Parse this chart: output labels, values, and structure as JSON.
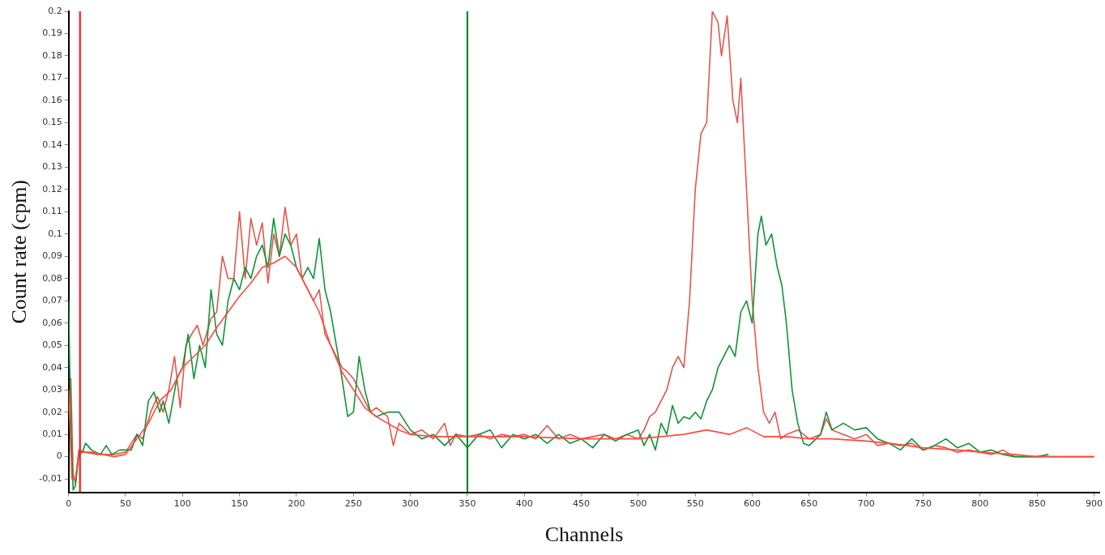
{
  "chart_data": {
    "type": "line",
    "xlabel": "Channels",
    "ylabel": "Count rate (cpm)",
    "marker": "none",
    "line_style": "solid",
    "grid": false,
    "legend": false,
    "xlim": [
      0,
      905
    ],
    "xticks": [
      0,
      50,
      100,
      150,
      200,
      250,
      300,
      350,
      400,
      450,
      500,
      550,
      600,
      650,
      700,
      750,
      800,
      850,
      900
    ],
    "ylim": [
      -0.016,
      0.2
    ],
    "yticks": [
      {
        "value": -0.01,
        "label": "-0,01"
      },
      {
        "value": 0,
        "label": "0"
      },
      {
        "value": 0.01,
        "label": "0,01"
      },
      {
        "value": 0.02,
        "label": "0,02"
      },
      {
        "value": 0.03,
        "label": "0,03"
      },
      {
        "value": 0.04,
        "label": "0,04"
      },
      {
        "value": 0.05,
        "label": "0,05"
      },
      {
        "value": 0.06,
        "label": "0,06"
      },
      {
        "value": 0.07,
        "label": "0,07"
      },
      {
        "value": 0.08,
        "label": "0,08"
      },
      {
        "value": 0.09,
        "label": "0,09"
      },
      {
        "value": 0.1,
        "label": "0,1"
      },
      {
        "value": 0.11,
        "label": "0.11"
      },
      {
        "value": 0.12,
        "label": "0.12"
      },
      {
        "value": 0.13,
        "label": "0.13"
      },
      {
        "value": 0.14,
        "label": "0.14"
      },
      {
        "value": 0.15,
        "label": "0.15"
      },
      {
        "value": 0.16,
        "label": "0.16"
      },
      {
        "value": 0.17,
        "label": "0.17"
      },
      {
        "value": 0.18,
        "label": "0.18"
      },
      {
        "value": 0.19,
        "label": "0.19"
      },
      {
        "value": 0.2,
        "label": "0.2"
      }
    ],
    "ref_lines": [
      {
        "axis": "x",
        "value": 10,
        "color": "#ff1a1a"
      },
      {
        "axis": "x",
        "value": 350,
        "color": "#0a8a2a"
      }
    ],
    "series": [
      {
        "color": "#ff4a3d",
        "x": [
          0,
          3,
          6,
          9,
          20,
          40,
          50,
          60,
          70,
          80,
          90,
          100,
          110,
          120,
          130,
          140,
          150,
          160,
          170,
          180,
          190,
          200,
          210,
          220,
          230,
          240,
          250,
          260,
          270,
          280,
          290,
          300,
          320,
          350,
          400,
          450,
          500,
          520,
          540,
          560,
          580,
          595,
          610,
          630,
          650,
          670,
          700,
          720,
          750,
          780,
          800,
          830,
          850,
          900
        ],
        "values": [
          0.03,
          -0.01,
          -0.01,
          0.002,
          0.002,
          0,
          0.001,
          0.008,
          0.015,
          0.025,
          0.03,
          0.04,
          0.045,
          0.05,
          0.058,
          0.065,
          0.072,
          0.078,
          0.085,
          0.087,
          0.09,
          0.085,
          0.075,
          0.065,
          0.05,
          0.038,
          0.03,
          0.022,
          0.018,
          0.015,
          0.012,
          0.01,
          0.009,
          0.009,
          0.009,
          0.008,
          0.008,
          0.009,
          0.01,
          0.012,
          0.01,
          0.013,
          0.009,
          0.009,
          0.008,
          0.008,
          0.007,
          0.006,
          0.004,
          0.003,
          0.002,
          0.001,
          0,
          0
        ]
      },
      {
        "color": "#0f9438",
        "x": [
          0,
          1,
          2,
          4,
          6,
          9,
          12,
          15,
          20,
          28,
          33,
          38,
          45,
          55,
          60,
          65,
          70,
          75,
          80,
          83,
          88,
          95,
          100,
          105,
          110,
          115,
          120,
          125,
          130,
          135,
          140,
          145,
          150,
          155,
          160,
          165,
          170,
          175,
          180,
          185,
          190,
          195,
          200,
          205,
          210,
          215,
          220,
          225,
          230,
          235,
          240,
          245,
          250,
          255,
          260,
          265,
          270,
          280,
          290,
          300,
          310,
          320,
          330,
          340,
          350,
          360,
          370,
          380,
          390,
          400,
          410,
          420,
          430,
          440,
          450,
          460,
          470,
          480,
          490,
          500,
          505,
          510,
          515,
          520,
          525,
          530,
          535,
          540,
          545,
          550,
          555,
          560,
          565,
          570,
          575,
          580,
          585,
          590,
          595,
          600,
          605,
          608,
          612,
          617,
          622,
          626,
          630,
          635,
          640,
          645,
          650,
          660,
          665,
          670,
          680,
          690,
          700,
          710,
          720,
          730,
          740,
          750,
          760,
          770,
          780,
          790,
          800,
          810,
          820,
          830,
          850,
          860
        ],
        "values": [
          0.07,
          0.04,
          0.015,
          -0.015,
          -0.013,
          0.001,
          0.002,
          0.006,
          0.003,
          0.001,
          0.005,
          0.001,
          0.003,
          0.003,
          0.01,
          0.005,
          0.025,
          0.029,
          0.02,
          0.025,
          0.015,
          0.035,
          0.04,
          0.055,
          0.035,
          0.05,
          0.04,
          0.075,
          0.055,
          0.05,
          0.07,
          0.08,
          0.075,
          0.085,
          0.08,
          0.09,
          0.095,
          0.085,
          0.107,
          0.09,
          0.1,
          0.095,
          0.085,
          0.08,
          0.085,
          0.08,
          0.098,
          0.075,
          0.065,
          0.05,
          0.035,
          0.018,
          0.02,
          0.045,
          0.03,
          0.02,
          0.018,
          0.02,
          0.02,
          0.012,
          0.008,
          0.01,
          0.005,
          0.01,
          0.004,
          0.01,
          0.012,
          0.004,
          0.01,
          0.008,
          0.01,
          0.006,
          0.01,
          0.006,
          0.008,
          0.004,
          0.01,
          0.007,
          0.01,
          0.012,
          0.005,
          0.01,
          0.003,
          0.015,
          0.01,
          0.023,
          0.015,
          0.018,
          0.017,
          0.02,
          0.017,
          0.025,
          0.03,
          0.04,
          0.045,
          0.05,
          0.045,
          0.065,
          0.07,
          0.06,
          0.1,
          0.108,
          0.095,
          0.1,
          0.085,
          0.077,
          0.06,
          0.03,
          0.015,
          0.006,
          0.005,
          0.01,
          0.02,
          0.012,
          0.015,
          0.012,
          0.013,
          0.008,
          0.006,
          0.003,
          0.008,
          0.003,
          0.005,
          0.008,
          0.004,
          0.006,
          0.002,
          0.003,
          0.001,
          0,
          0,
          0.001
        ]
      },
      {
        "color": "#e2574c",
        "x": [
          0,
          2,
          4,
          6,
          9,
          15,
          25,
          40,
          50,
          60,
          65,
          72,
          78,
          83,
          88,
          93,
          98,
          103,
          108,
          113,
          118,
          125,
          130,
          135,
          140,
          145,
          150,
          155,
          160,
          165,
          170,
          175,
          180,
          185,
          190,
          195,
          200,
          205,
          210,
          215,
          220,
          225,
          230,
          235,
          240,
          245,
          250,
          255,
          260,
          265,
          270,
          280,
          285,
          290,
          300,
          310,
          320,
          330,
          335,
          340,
          350,
          360,
          370,
          380,
          390,
          400,
          410,
          420,
          430,
          440,
          450,
          460,
          470,
          480,
          490,
          500,
          505,
          510,
          515,
          520,
          525,
          530,
          535,
          540,
          545,
          550,
          555,
          560,
          565,
          570,
          573,
          578,
          583,
          587,
          590,
          595,
          600,
          605,
          610,
          615,
          620,
          625,
          630,
          640,
          650,
          660,
          665,
          670,
          680,
          690,
          700,
          710,
          720,
          730,
          740,
          750,
          760,
          770,
          780,
          790,
          800,
          810,
          820,
          830,
          840,
          860,
          900
        ],
        "values": [
          0.02,
          0.035,
          -0.008,
          -0.012,
          0.003,
          0.002,
          0.001,
          0.001,
          0.002,
          0.01,
          0.008,
          0.02,
          0.027,
          0.02,
          0.03,
          0.045,
          0.022,
          0.05,
          0.055,
          0.059,
          0.05,
          0.062,
          0.065,
          0.09,
          0.08,
          0.08,
          0.11,
          0.08,
          0.107,
          0.095,
          0.105,
          0.078,
          0.1,
          0.09,
          0.112,
          0.095,
          0.1,
          0.08,
          0.075,
          0.07,
          0.075,
          0.055,
          0.05,
          0.045,
          0.04,
          0.038,
          0.035,
          0.03,
          0.025,
          0.02,
          0.022,
          0.018,
          0.005,
          0.015,
          0.01,
          0.012,
          0.008,
          0.015,
          0.005,
          0.01,
          0.009,
          0.01,
          0.008,
          0.01,
          0.009,
          0.01,
          0.008,
          0.014,
          0.008,
          0.01,
          0.008,
          0.009,
          0.01,
          0.008,
          0.01,
          0.008,
          0.012,
          0.018,
          0.02,
          0.025,
          0.03,
          0.04,
          0.045,
          0.04,
          0.07,
          0.12,
          0.145,
          0.15,
          0.2,
          0.195,
          0.18,
          0.198,
          0.16,
          0.15,
          0.17,
          0.12,
          0.07,
          0.04,
          0.02,
          0.015,
          0.02,
          0.008,
          0.01,
          0.012,
          0.008,
          0.01,
          0.017,
          0.012,
          0.01,
          0.008,
          0.01,
          0.005,
          0.006,
          0.005,
          0.006,
          0.003,
          0.005,
          0.004,
          0.002,
          0.003,
          0.002,
          0.001,
          0.003,
          0,
          0,
          0,
          0
        ]
      }
    ]
  }
}
